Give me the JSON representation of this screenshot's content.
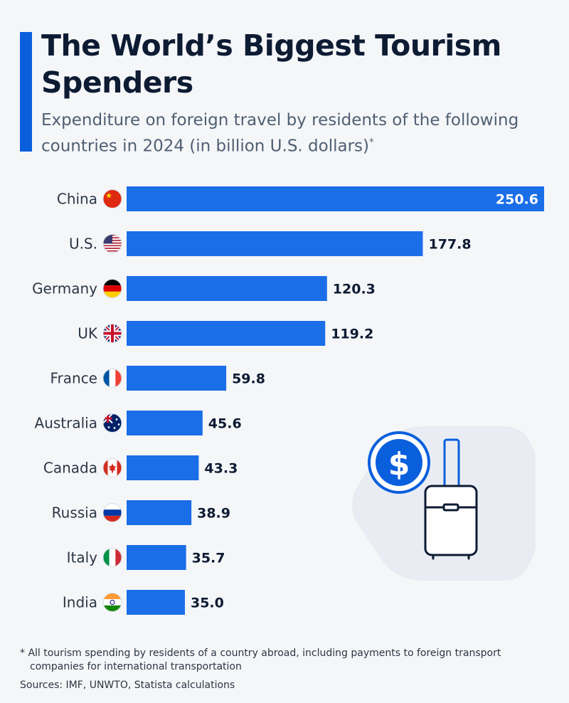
{
  "header": {
    "title": "The World’s Biggest Tourism Spenders",
    "subtitle": "Expenditure on foreign travel by residents of the following countries in 2024 (in billion U.S. dollars)",
    "subtitle_mark": "*"
  },
  "chart_data": {
    "type": "bar",
    "orientation": "horizontal",
    "title": "The World’s Biggest Tourism Spenders",
    "categories": [
      "China",
      "U.S.",
      "Germany",
      "UK",
      "France",
      "Australia",
      "Canada",
      "Russia",
      "Italy",
      "India"
    ],
    "values": [
      250.6,
      177.8,
      120.3,
      119.2,
      59.8,
      45.6,
      43.3,
      38.9,
      35.7,
      35.0
    ],
    "value_labels": [
      "250.6",
      "177.8",
      "120.3",
      "119.2",
      "59.8",
      "45.6",
      "43.3",
      "38.9",
      "35.7",
      "35.0"
    ],
    "xlim": [
      0,
      250.6
    ],
    "grid": false,
    "bar_color": "#1a6ee8",
    "label_color": "#0d1b33",
    "inside_label_color": "#ffffff",
    "flag_icons": [
      "flag-china-icon",
      "flag-us-icon",
      "flag-germany-icon",
      "flag-uk-icon",
      "flag-france-icon",
      "flag-australia-icon",
      "flag-canada-icon",
      "flag-russia-icon",
      "flag-italy-icon",
      "flag-india-icon"
    ]
  },
  "illustration": {
    "icons": [
      "dollar-coin-icon",
      "suitcase-icon"
    ],
    "dollar_symbol": "$"
  },
  "footer": {
    "footnote_line1": "* All tourism spending by residents of a country abroad, including payments to foreign transport",
    "footnote_line2": "companies for international transportation",
    "sources": "Sources: IMF, UNWTO, Statista calculations"
  },
  "colors": {
    "accent": "#0a5fdc",
    "background": "#f5f6f8",
    "title": "#0d1b33",
    "subtitle": "#4f5f73"
  }
}
